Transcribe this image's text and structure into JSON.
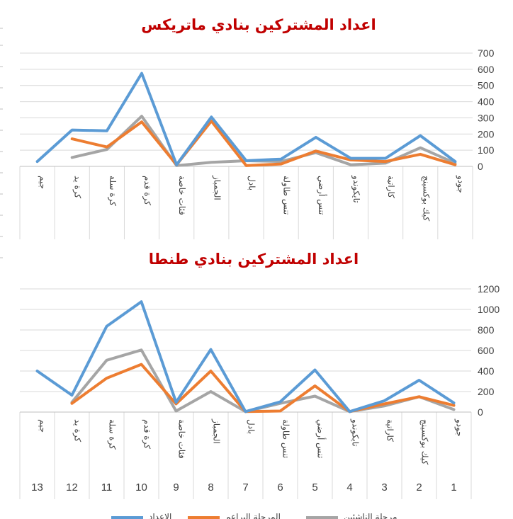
{
  "colors": {
    "title": "#c00000",
    "blue": "#5b9bd5",
    "orange": "#ed7d31",
    "gray": "#a5a5a5",
    "grid": "#d9d9d9",
    "axis": "#bfbfbf"
  },
  "legend": [
    "الاعداد",
    "المرحلة البراعم",
    "مرحلة الناشئين"
  ],
  "chart_data": [
    {
      "type": "line",
      "title": "اعداد المشتركين بنادي ماتريكس",
      "categories": [
        "جيم",
        "كرة يد",
        "كرة سلة",
        "كرة قدم",
        "فئات خاصة",
        "الجمباز",
        "بادل",
        "تنس طاولة",
        "تنس أرضي",
        "تايكوندو",
        "كاراتية",
        "كيك بوكسينج",
        "جودو"
      ],
      "ylim": [
        0,
        700
      ],
      "yticks": [
        0,
        100,
        200,
        300,
        400,
        500,
        600,
        700
      ],
      "y_axis_side": "right",
      "grid": true,
      "series": [
        {
          "name": "الاعداد",
          "color": "#5b9bd5",
          "values": [
            30,
            225,
            220,
            575,
            10,
            305,
            35,
            45,
            180,
            50,
            50,
            190,
            30
          ]
        },
        {
          "name": "المرحلة البراعم",
          "color": "#ed7d31",
          "values": [
            null,
            170,
            120,
            275,
            10,
            280,
            5,
            15,
            95,
            40,
            30,
            75,
            10
          ]
        },
        {
          "name": "مرحلة الناشئين",
          "color": "#a5a5a5",
          "values": [
            null,
            55,
            105,
            310,
            5,
            25,
            35,
            30,
            85,
            10,
            20,
            115,
            20
          ]
        }
      ]
    },
    {
      "type": "line",
      "title": "اعداد المشتركين بنادي طنطا",
      "categories": [
        "جيم",
        "كرة يد",
        "كرة سلة",
        "كرة قدم",
        "فئات خاصة",
        "الجمباز",
        "بادل",
        "تنس طاولة",
        "تنس أرضي",
        "تايكوندو",
        "كاراتية",
        "كيك بوكسينج",
        "جودو"
      ],
      "category_numbers": [
        "13",
        "12",
        "11",
        "10",
        "9",
        "8",
        "7",
        "6",
        "5",
        "4",
        "3",
        "2",
        "1"
      ],
      "ylim": [
        0,
        1200
      ],
      "yticks": [
        0,
        200,
        400,
        600,
        800,
        1000,
        1200
      ],
      "y_axis_side": "right",
      "grid": true,
      "series": [
        {
          "name": "الاعداد",
          "color": "#5b9bd5",
          "values": [
            400,
            165,
            835,
            1075,
            95,
            610,
            5,
            100,
            410,
            5,
            110,
            310,
            90
          ]
        },
        {
          "name": "المرحلة البراعم",
          "color": "#ed7d31",
          "values": [
            null,
            85,
            330,
            465,
            80,
            400,
            5,
            10,
            255,
            5,
            80,
            150,
            65
          ]
        },
        {
          "name": "مرحلة الناشئين",
          "color": "#a5a5a5",
          "values": [
            null,
            95,
            505,
            605,
            10,
            200,
            5,
            85,
            155,
            5,
            60,
            150,
            25
          ]
        }
      ]
    }
  ]
}
